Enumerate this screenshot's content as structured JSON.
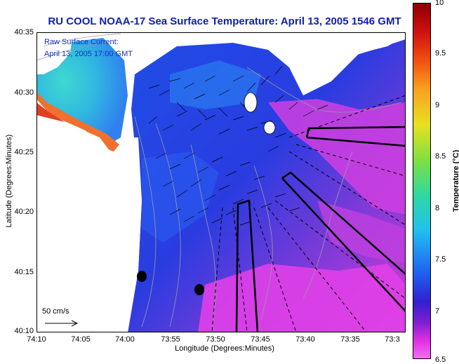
{
  "title": "RU COOL  NOAA-17  Sea Surface Temperature:  April 13, 2005 1546 GMT",
  "overlay": {
    "line1": "Raw Surface Current:",
    "line2": "April 13, 2005 17:00 GMT",
    "scale_label": "50 cm/s"
  },
  "axes": {
    "xlabel": "Longitude (Degrees:Minutes)",
    "ylabel": "Latitude (Degrees:Minutes)",
    "x_ticks": [
      "74:10",
      "74:05",
      "74:00",
      "73:55",
      "73:50",
      "73:45",
      "73:40",
      "73:35",
      "73:3"
    ],
    "y_ticks": [
      "40:35",
      "40:30",
      "40:25",
      "40:20",
      "40:15",
      "40:10"
    ]
  },
  "colorbar": {
    "title": "Temperature (°C)",
    "ticks": [
      "10",
      "9.5",
      "9",
      "8.5",
      "8",
      "7.5",
      "7",
      "6.5"
    ]
  },
  "colors": {
    "title": "#1020b0",
    "land": "#ffffff"
  }
}
